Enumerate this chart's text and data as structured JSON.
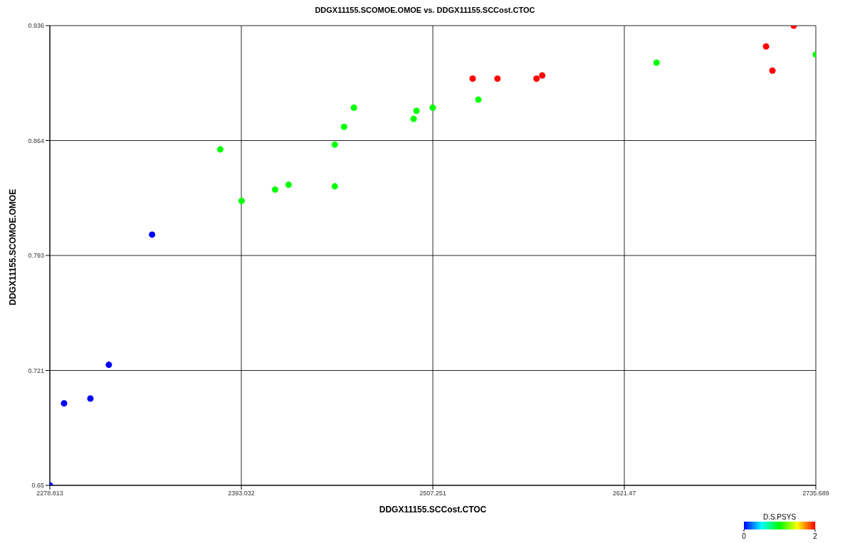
{
  "chart_data": {
    "type": "scatter",
    "title": "DDGX11155.SCOMOE.OMOE vs. DDGX11155.SCCost.CTOC",
    "xlabel": "DDGX11155.SCCost.CTOC",
    "ylabel": "DDGX11155.SCOMOE.OMOE",
    "clabel": "D.S.PSYS",
    "clim": [
      0,
      2
    ],
    "cticks": [
      0,
      2
    ],
    "x": [
      2278.813,
      2287.3,
      2303.0,
      2314.0,
      2339.8,
      2380.5,
      2393.2,
      2413.2,
      2421.2,
      2448.8,
      2448.8,
      2454.3,
      2460.2,
      2495.8,
      2497.5,
      2507.2,
      2534.4,
      2640.7,
      2735.689,
      2531.0,
      2545.8,
      2569.1,
      2572.5,
      2706.0,
      2709.8,
      2722.5
    ],
    "values": [
      0.65,
      0.701,
      0.704,
      0.725,
      0.806,
      0.859,
      0.827,
      0.834,
      0.837,
      0.862,
      0.836,
      0.873,
      0.885,
      0.878,
      0.883,
      0.885,
      0.89,
      0.913,
      0.918,
      0.903,
      0.903,
      0.903,
      0.905,
      0.923,
      0.908,
      0.936
    ],
    "cvalues": [
      0,
      0,
      0,
      0,
      0,
      1,
      1,
      1,
      1,
      1,
      1,
      1,
      1,
      1,
      1,
      1,
      1,
      1,
      1,
      2,
      2,
      2,
      2,
      2,
      2,
      2
    ],
    "xlim": [
      2278.813,
      2735.689
    ],
    "xticks": [
      2278.813,
      2393.032,
      2507.251,
      2621.47,
      2735.689
    ],
    "ylim": [
      0.65,
      0.936
    ],
    "yticks": [
      {
        "value": 0.65,
        "label": "0.65"
      },
      {
        "value": 0.7215,
        "label": "0.721"
      },
      {
        "value": 0.793,
        "label": "0.793"
      },
      {
        "value": 0.8645,
        "label": "0.864"
      },
      {
        "value": 0.936,
        "label": "0.936"
      }
    ],
    "grid": true,
    "marker": "circle",
    "legend": false
  }
}
